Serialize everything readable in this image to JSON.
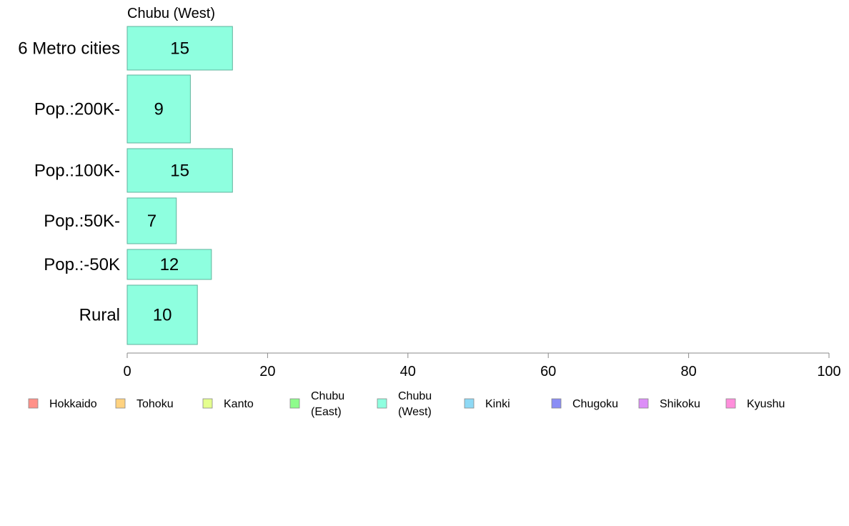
{
  "chart_data": {
    "type": "bar",
    "orientation": "horizontal",
    "title": "Chubu (West)",
    "categories": [
      "6 Metro cities",
      "Pop.:200K-",
      "Pop.:100K-",
      "Pop.:50K-",
      "Pop.:-50K",
      "Rural"
    ],
    "values": [
      15,
      9,
      15,
      7,
      12,
      10
    ],
    "xlim": [
      0,
      100
    ],
    "xticks": [
      0,
      20,
      40,
      60,
      80,
      100
    ],
    "bar_color": "#8effdf",
    "bar_edge_color": "#5fb39c",
    "legend": {
      "placement": "bottom",
      "items": [
        {
          "label": [
            "Hokkaido"
          ],
          "color": "#ff9189"
        },
        {
          "label": [
            "Tohoku"
          ],
          "color": "#ffd27f"
        },
        {
          "label": [
            "Kanto"
          ],
          "color": "#e4ff8e"
        },
        {
          "label": [
            "Chubu",
            "(East)"
          ],
          "color": "#8efc8c"
        },
        {
          "label": [
            "Chubu",
            "(West)"
          ],
          "color": "#8effdf"
        },
        {
          "label": [
            "Kinki"
          ],
          "color": "#8ed9f5"
        },
        {
          "label": [
            "Chugoku"
          ],
          "color": "#8a8df5"
        },
        {
          "label": [
            "Shikoku"
          ],
          "color": "#dc8ef7"
        },
        {
          "label": [
            "Kyushu"
          ],
          "color": "#ff8edb"
        }
      ]
    }
  }
}
